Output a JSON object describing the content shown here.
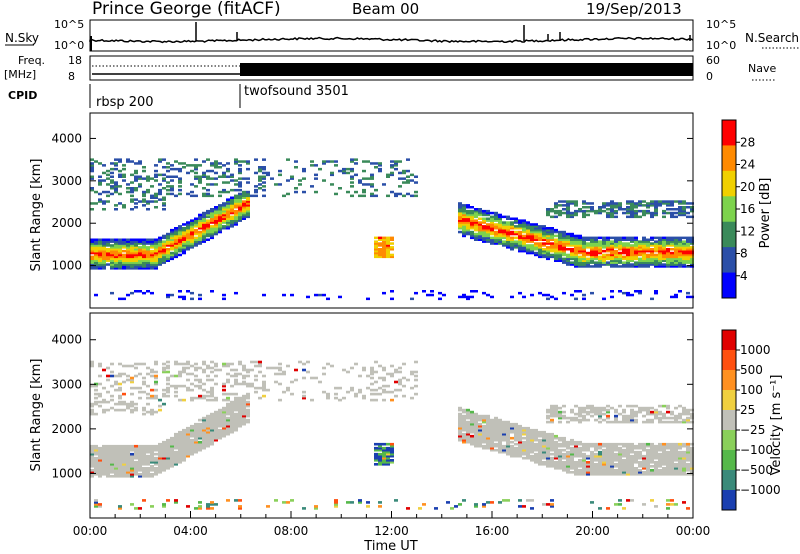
{
  "header": {
    "station": "Prince George (fitACF)",
    "beam": "Beam 00",
    "date": "19/Sep/2013"
  },
  "top_panel": {
    "left_label": "N.Sky",
    "left_ticks": [
      "10^5",
      "10^0"
    ],
    "right_ticks": [
      "10^5",
      "10^0"
    ],
    "right_label": "N.Search"
  },
  "freq_panel": {
    "left_label_1": "Freq.",
    "left_label_2": "[MHz]",
    "left_ticks": [
      "18",
      "8"
    ],
    "right_ticks": [
      "60",
      "0"
    ],
    "right_label": "Nave"
  },
  "cpid": {
    "label": "CPID",
    "programs": [
      {
        "name": "rbsp 200",
        "start_hour": 0
      },
      {
        "name": "twofsound 3501",
        "start_hour": 6
      }
    ]
  },
  "chart_data": [
    {
      "type": "heatmap",
      "panel": "power",
      "ylabel": "Slant Range [km]",
      "ylim": [
        0,
        4600
      ],
      "yticks": [
        1000,
        2000,
        3000,
        4000
      ],
      "xlim": [
        0,
        24
      ],
      "xticks": [
        "00:00",
        "04:00",
        "08:00",
        "12:00",
        "16:00",
        "20:00",
        "00:00"
      ],
      "colorbar": {
        "label": "Power [dB]",
        "range": [
          0,
          32
        ],
        "ticks": [
          "28",
          "24",
          "20",
          "16",
          "12",
          "8",
          "4"
        ],
        "colors": [
          "#0000ff",
          "#2b4fa8",
          "#3a8a5a",
          "#7dd34d",
          "#f0d000",
          "#ff8a00",
          "#ff0000"
        ]
      },
      "features": [
        {
          "name": "main-ground-scatter-band",
          "hours": [
            0,
            6.5
          ],
          "range_km": [
            1200,
            2500
          ]
        },
        {
          "name": "high-range-echoes",
          "hours": [
            0,
            13
          ],
          "range_km": [
            2300,
            3500
          ]
        },
        {
          "name": "midday-patch",
          "hours": [
            11.3,
            12
          ],
          "range_km": [
            1200,
            1600
          ]
        },
        {
          "name": "evening-band",
          "hours": [
            14.5,
            24
          ],
          "range_km": [
            1000,
            2300
          ]
        }
      ]
    },
    {
      "type": "heatmap",
      "panel": "velocity",
      "ylabel": "Slant Range [km]",
      "ylim": [
        0,
        4600
      ],
      "yticks": [
        1000,
        2000,
        3000,
        4000
      ],
      "xlim": [
        0,
        24
      ],
      "xticks": [
        "00:00",
        "04:00",
        "08:00",
        "12:00",
        "16:00",
        "20:00",
        "00:00"
      ],
      "xlabel": "Time UT",
      "colorbar": {
        "label": "Velocity [m s⁻¹]",
        "ticks": [
          "1000",
          "500",
          "100",
          "25",
          "−25",
          "−100",
          "−500",
          "−1000"
        ],
        "colors": [
          "#1a3fb0",
          "#3a8a7a",
          "#55b84a",
          "#8ad05a",
          "#c0c0b8",
          "#f0d040",
          "#ff9020",
          "#ff5010",
          "#e00000"
        ]
      }
    }
  ]
}
